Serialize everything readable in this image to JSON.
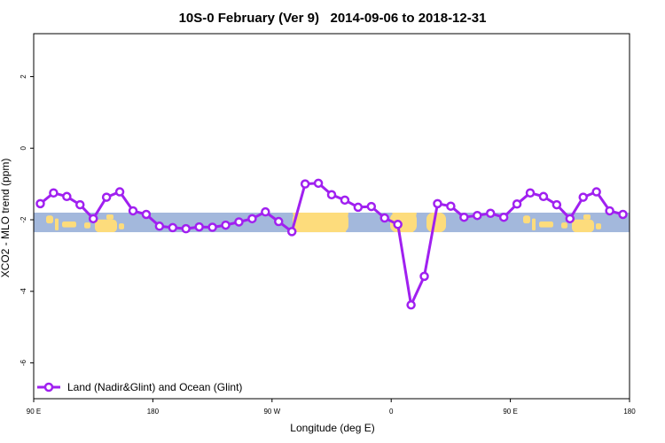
{
  "chart_data": {
    "type": "line",
    "title": "10S-0 February (Ver 9)   2014-09-06 to 2018-12-31",
    "xlabel": "Longitude (deg E)",
    "ylabel": "XCO2 - MLO trend (ppm)",
    "xlim": [
      90,
      540
    ],
    "ylim": [
      -7.0,
      3.2
    ],
    "x_ticks": [
      {
        "value": 90,
        "label": "90 E"
      },
      {
        "value": 180,
        "label": "180"
      },
      {
        "value": 270,
        "label": "90 W"
      },
      {
        "value": 360,
        "label": "0"
      },
      {
        "value": 450,
        "label": "90 E"
      },
      {
        "value": 540,
        "label": "180"
      }
    ],
    "y_ticks": [
      2,
      0,
      -2,
      -4,
      -6
    ],
    "grid": false,
    "legend_position": "bottom-left",
    "background_strip": {
      "y_range": [
        -2.35,
        -1.8
      ],
      "ocean_color": "#a3b8dc",
      "land_color": "#fddc7c"
    },
    "series": [
      {
        "name": "Land (Nadir&Glint) and Ocean (Glint)",
        "color": "#a020f0",
        "x": [
          95,
          105,
          115,
          125,
          135,
          145,
          155,
          165,
          175,
          185,
          195,
          205,
          215,
          225,
          235,
          245,
          255,
          265,
          275,
          285,
          295,
          305,
          315,
          325,
          335,
          345,
          355,
          365,
          375,
          385,
          395,
          405,
          415,
          425,
          435,
          445,
          455,
          465,
          475,
          485,
          495,
          505,
          515,
          525,
          535
        ],
        "values": [
          -1.55,
          -1.25,
          -1.35,
          -1.58,
          -1.97,
          -1.37,
          -1.22,
          -1.75,
          -1.85,
          -2.18,
          -2.22,
          -2.25,
          -2.2,
          -2.21,
          -2.15,
          -2.06,
          -1.97,
          -1.78,
          -2.05,
          -2.33,
          -1.0,
          -0.98,
          -1.3,
          -1.45,
          -1.65,
          -1.63,
          -1.95,
          -2.13,
          -4.38,
          -3.58,
          -1.55,
          -1.62,
          -1.93,
          -1.88,
          -1.82,
          -1.93,
          -1.56,
          -1.25,
          -1.35,
          -1.58,
          -1.97,
          -1.37,
          -1.22,
          -1.75,
          -1.85
        ]
      }
    ]
  }
}
